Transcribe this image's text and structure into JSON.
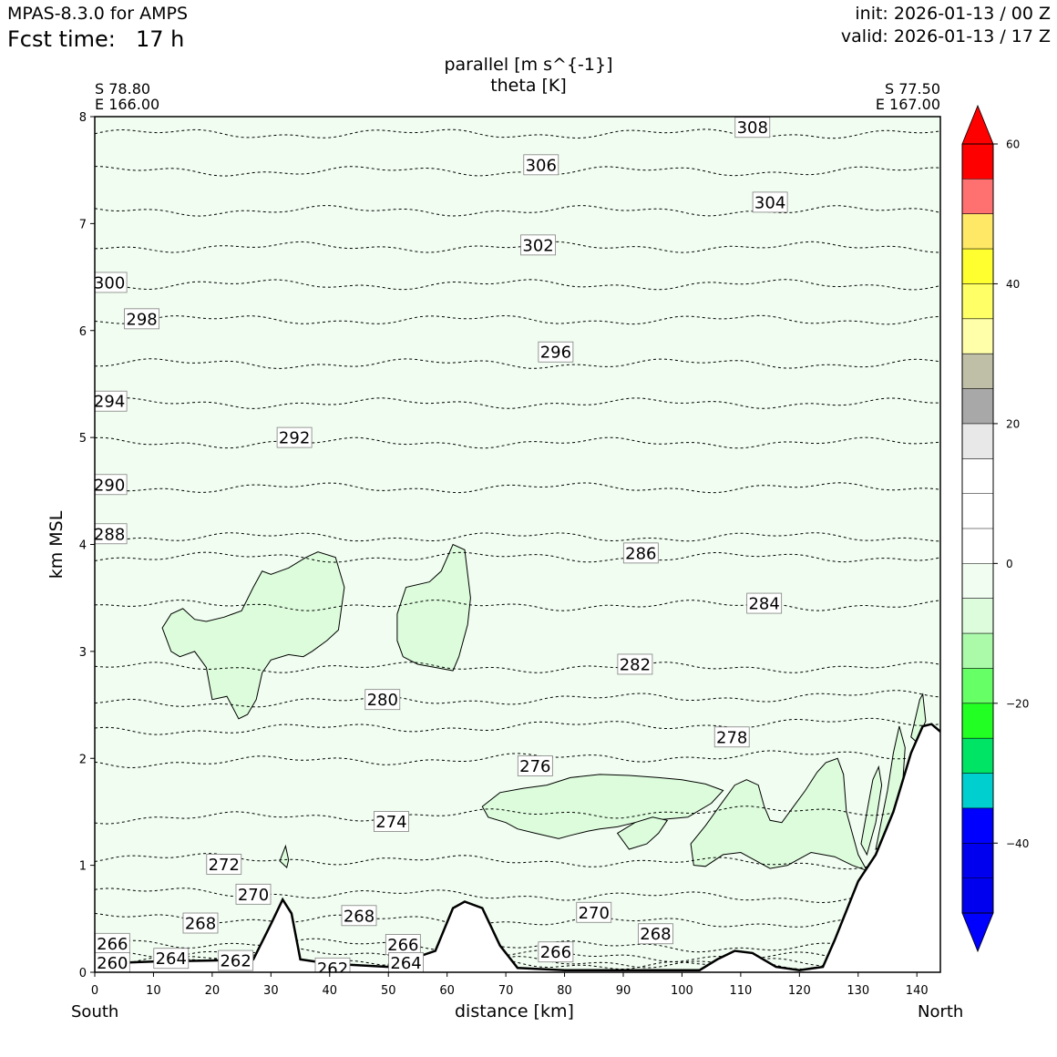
{
  "header": {
    "model": "MPAS-8.3.0 for AMPS",
    "fcst_label": "Fcst time:",
    "fcst_value": "17 h",
    "init": "init: 2026-01-13 / 00 Z",
    "valid": "valid: 2026-01-13 / 17 Z"
  },
  "titles": {
    "line1": "parallel [m s^{-1}]",
    "line2": "theta [K]"
  },
  "endpoints": {
    "left_lat": "S 78.80",
    "left_lon": "E 166.00",
    "right_lat": "S 77.50",
    "right_lon": "E 167.00",
    "left_dir": "South",
    "right_dir": "North"
  },
  "axes": {
    "xlabel": "distance [km]",
    "ylabel": "km MSL"
  },
  "colors": {
    "background_field": "#f0fdf0",
    "negative_contour_fill": "#dcfcdc",
    "terrain": "#ffffff"
  },
  "chart_data": {
    "type": "contour",
    "xlim": [
      0,
      144
    ],
    "ylim": [
      0,
      8
    ],
    "xticks": [
      0,
      10,
      20,
      30,
      40,
      50,
      60,
      70,
      80,
      90,
      100,
      110,
      120,
      130,
      140
    ],
    "yticks": [
      0,
      1,
      2,
      3,
      4,
      5,
      6,
      7,
      8
    ],
    "colorbar": {
      "ticks": [
        60,
        40,
        20,
        0,
        -20,
        -40
      ],
      "tick_labels": [
        "60",
        "40",
        "20",
        "0",
        "−20",
        "−40"
      ],
      "extend": "both",
      "bins": [
        {
          "from": 55,
          "to": 60,
          "color": "#ff0000"
        },
        {
          "from": 50,
          "to": 55,
          "color": "#ff7070"
        },
        {
          "from": 45,
          "to": 50,
          "color": "#ffe866"
        },
        {
          "from": 40,
          "to": 45,
          "color": "#ffff30"
        },
        {
          "from": 35,
          "to": 40,
          "color": "#ffff66"
        },
        {
          "from": 30,
          "to": 35,
          "color": "#ffffaa"
        },
        {
          "from": 25,
          "to": 30,
          "color": "#bfbfa8"
        },
        {
          "from": 20,
          "to": 25,
          "color": "#a8a8a8"
        },
        {
          "from": 15,
          "to": 20,
          "color": "#e8e8e8"
        },
        {
          "from": 10,
          "to": 15,
          "color": "#ffffff"
        },
        {
          "from": 5,
          "to": 10,
          "color": "#ffffff"
        },
        {
          "from": 0,
          "to": 5,
          "color": "#ffffff"
        },
        {
          "from": -5,
          "to": 0,
          "color": "#f0fdf0"
        },
        {
          "from": -10,
          "to": -5,
          "color": "#dcfcdc"
        },
        {
          "from": -15,
          "to": -10,
          "color": "#aafaaa"
        },
        {
          "from": -20,
          "to": -15,
          "color": "#66ff66"
        },
        {
          "from": -25,
          "to": -20,
          "color": "#22ff22"
        },
        {
          "from": -30,
          "to": -25,
          "color": "#00e466"
        },
        {
          "from": -35,
          "to": -30,
          "color": "#00cfcf"
        },
        {
          "from": -40,
          "to": -35,
          "color": "#0000ff"
        },
        {
          "from": -45,
          "to": -40,
          "color": "#0000ee"
        },
        {
          "from": -50,
          "to": -45,
          "color": "#0000ee"
        }
      ],
      "extend_low_color": "#0000ff",
      "extend_high_color": "#ff0000"
    },
    "theta_levels": [
      {
        "value": 308,
        "height": 7.84
      },
      {
        "value": 306,
        "height": 7.49
      },
      {
        "value": 304,
        "height": 7.12
      },
      {
        "value": 302,
        "height": 6.78
      },
      {
        "value": 300,
        "height": 6.43
      },
      {
        "value": 298,
        "height": 6.1
      },
      {
        "value": 296,
        "height": 5.69
      },
      {
        "value": 294,
        "height": 5.32
      },
      {
        "value": 292,
        "height": 4.95
      },
      {
        "value": 290,
        "height": 4.53
      },
      {
        "value": 288,
        "height": 4.07
      },
      {
        "value": 286,
        "height": 3.88
      },
      {
        "value": 284,
        "height": 3.43
      },
      {
        "value": 282,
        "height": 2.85
      },
      {
        "value": 280,
        "height": 2.55
      },
      {
        "value": 278,
        "height": 2.3
      },
      {
        "value": 276,
        "height": 2.0
      },
      {
        "value": 274,
        "height": 1.48
      },
      {
        "value": 272,
        "height": 1.04
      },
      {
        "value": 270,
        "height": 0.72
      },
      {
        "value": 268,
        "height": 0.48
      },
      {
        "value": 266,
        "height": 0.25
      },
      {
        "value": 264,
        "height": 0.16
      },
      {
        "value": 262,
        "height": 0.1
      },
      {
        "value": 260,
        "height": 0.08
      }
    ],
    "contour_labels": [
      {
        "text": "308",
        "x": 112,
        "y": 7.9
      },
      {
        "text": "306",
        "x": 76,
        "y": 7.55
      },
      {
        "text": "304",
        "x": 115,
        "y": 7.2
      },
      {
        "text": "302",
        "x": 75.5,
        "y": 6.8
      },
      {
        "text": "300",
        "x": 2.5,
        "y": 6.45
      },
      {
        "text": "298",
        "x": 8,
        "y": 6.11
      },
      {
        "text": "296",
        "x": 78.5,
        "y": 5.8
      },
      {
        "text": "294",
        "x": 2.5,
        "y": 5.34
      },
      {
        "text": "292",
        "x": 34,
        "y": 5.0
      },
      {
        "text": "290",
        "x": 2.5,
        "y": 4.56
      },
      {
        "text": "288",
        "x": 2.5,
        "y": 4.1
      },
      {
        "text": "286",
        "x": 93,
        "y": 3.92
      },
      {
        "text": "284",
        "x": 114,
        "y": 3.45
      },
      {
        "text": "282",
        "x": 92,
        "y": 2.88
      },
      {
        "text": "280",
        "x": 49,
        "y": 2.55
      },
      {
        "text": "278",
        "x": 108.5,
        "y": 2.2
      },
      {
        "text": "276",
        "x": 75,
        "y": 1.93
      },
      {
        "text": "274",
        "x": 50.5,
        "y": 1.41
      },
      {
        "text": "272",
        "x": 22,
        "y": 1.01
      },
      {
        "text": "270",
        "x": 27,
        "y": 0.73
      },
      {
        "text": "270",
        "x": 85,
        "y": 0.56
      },
      {
        "text": "268",
        "x": 18,
        "y": 0.46
      },
      {
        "text": "268",
        "x": 45,
        "y": 0.53
      },
      {
        "text": "268",
        "x": 95.5,
        "y": 0.36
      },
      {
        "text": "266",
        "x": 3,
        "y": 0.27
      },
      {
        "text": "266",
        "x": 52.5,
        "y": 0.26
      },
      {
        "text": "266",
        "x": 78.5,
        "y": 0.19
      },
      {
        "text": "264",
        "x": 13,
        "y": 0.13
      },
      {
        "text": "264",
        "x": 53,
        "y": 0.09
      },
      {
        "text": "262",
        "x": 24,
        "y": 0.11
      },
      {
        "text": "262",
        "x": 40.5,
        "y": 0.04
      },
      {
        "text": "260",
        "x": 3,
        "y": 0.09
      }
    ],
    "terrain": [
      [
        0,
        0.08
      ],
      [
        10,
        0.1
      ],
      [
        20,
        0.11
      ],
      [
        27,
        0.12
      ],
      [
        30,
        0.45
      ],
      [
        32,
        0.68
      ],
      [
        33.5,
        0.55
      ],
      [
        35,
        0.12
      ],
      [
        40,
        0.08
      ],
      [
        50,
        0.05
      ],
      [
        58,
        0.2
      ],
      [
        61,
        0.6
      ],
      [
        63,
        0.66
      ],
      [
        66,
        0.6
      ],
      [
        69,
        0.25
      ],
      [
        72,
        0.04
      ],
      [
        80,
        0.02
      ],
      [
        90,
        0.02
      ],
      [
        103,
        0.02
      ],
      [
        106,
        0.12
      ],
      [
        109,
        0.2
      ],
      [
        112,
        0.18
      ],
      [
        116,
        0.05
      ],
      [
        120,
        0.02
      ],
      [
        124,
        0.05
      ],
      [
        126,
        0.3
      ],
      [
        130,
        0.85
      ],
      [
        133,
        1.1
      ],
      [
        136,
        1.5
      ],
      [
        139,
        2.05
      ],
      [
        141,
        2.3
      ],
      [
        142.5,
        2.32
      ],
      [
        144,
        2.25
      ]
    ],
    "negative_regions": [
      [
        [
          11.5,
          3.22
        ],
        [
          13,
          3.35
        ],
        [
          15,
          3.4
        ],
        [
          17,
          3.3
        ],
        [
          19,
          3.28
        ],
        [
          22,
          3.32
        ],
        [
          25,
          3.38
        ],
        [
          27,
          3.6
        ],
        [
          28.5,
          3.75
        ],
        [
          30,
          3.72
        ],
        [
          33,
          3.78
        ],
        [
          36,
          3.88
        ],
        [
          38,
          3.93
        ],
        [
          41,
          3.88
        ],
        [
          42.5,
          3.6
        ],
        [
          41.5,
          3.2
        ],
        [
          39.5,
          3.1
        ],
        [
          37,
          3.0
        ],
        [
          35.5,
          2.95
        ],
        [
          33,
          2.97
        ],
        [
          30,
          2.92
        ],
        [
          28.5,
          2.8
        ],
        [
          27.5,
          2.55
        ],
        [
          26,
          2.41
        ],
        [
          24.5,
          2.37
        ],
        [
          22.5,
          2.58
        ],
        [
          20,
          2.55
        ],
        [
          19,
          2.85
        ],
        [
          17,
          3.0
        ],
        [
          14.5,
          2.95
        ],
        [
          13,
          3.0
        ],
        [
          11.5,
          3.22
        ]
      ],
      [
        [
          51.5,
          3.35
        ],
        [
          53,
          3.6
        ],
        [
          57,
          3.65
        ],
        [
          59,
          3.75
        ],
        [
          61,
          4.0
        ],
        [
          63,
          3.95
        ],
        [
          64,
          3.5
        ],
        [
          63.5,
          3.25
        ],
        [
          62,
          2.95
        ],
        [
          61,
          2.82
        ],
        [
          58,
          2.85
        ],
        [
          55,
          2.88
        ],
        [
          52.5,
          2.95
        ],
        [
          51.5,
          3.1
        ],
        [
          51.5,
          3.35
        ]
      ],
      [
        [
          66,
          1.55
        ],
        [
          69,
          1.68
        ],
        [
          73,
          1.72
        ],
        [
          77,
          1.75
        ],
        [
          81,
          1.82
        ],
        [
          86,
          1.85
        ],
        [
          91,
          1.84
        ],
        [
          96,
          1.82
        ],
        [
          100,
          1.8
        ],
        [
          104,
          1.76
        ],
        [
          107,
          1.7
        ],
        [
          105,
          1.58
        ],
        [
          101,
          1.45
        ],
        [
          95,
          1.42
        ],
        [
          92,
          1.4
        ],
        [
          89,
          1.36
        ],
        [
          86,
          1.34
        ],
        [
          84,
          1.32
        ],
        [
          81,
          1.28
        ],
        [
          79,
          1.25
        ],
        [
          75,
          1.3
        ],
        [
          72,
          1.34
        ],
        [
          70,
          1.4
        ],
        [
          67,
          1.45
        ],
        [
          66,
          1.55
        ]
      ],
      [
        [
          89,
          1.3
        ],
        [
          92,
          1.4
        ],
        [
          95,
          1.45
        ],
        [
          97.5,
          1.42
        ],
        [
          96,
          1.3
        ],
        [
          94,
          1.2
        ],
        [
          91,
          1.15
        ],
        [
          89,
          1.3
        ]
      ],
      [
        [
          101.5,
          1.2
        ],
        [
          104,
          1.37
        ],
        [
          107,
          1.6
        ],
        [
          109,
          1.75
        ],
        [
          111,
          1.8
        ],
        [
          113,
          1.75
        ],
        [
          114,
          1.55
        ],
        [
          115,
          1.42
        ],
        [
          117,
          1.4
        ],
        [
          119,
          1.55
        ],
        [
          121,
          1.7
        ],
        [
          123,
          1.87
        ],
        [
          124.5,
          1.96
        ],
        [
          126.5,
          2.0
        ],
        [
          127.5,
          1.85
        ],
        [
          128,
          1.5
        ],
        [
          129,
          1.3
        ],
        [
          130,
          1.1
        ],
        [
          131.5,
          0.95
        ],
        [
          129,
          1.0
        ],
        [
          126,
          1.08
        ],
        [
          122,
          1.12
        ],
        [
          118,
          1.0
        ],
        [
          115,
          0.97
        ],
        [
          112,
          1.06
        ],
        [
          110,
          1.12
        ],
        [
          107,
          1.1
        ],
        [
          104,
          0.99
        ],
        [
          102,
          1.0
        ],
        [
          101.5,
          1.2
        ]
      ],
      [
        [
          130.5,
          1.2
        ],
        [
          131.5,
          1.5
        ],
        [
          132.5,
          1.8
        ],
        [
          133.5,
          1.92
        ],
        [
          134,
          1.75
        ],
        [
          133,
          1.4
        ],
        [
          131.5,
          1.1
        ],
        [
          130.5,
          1.2
        ]
      ],
      [
        [
          133,
          1.15
        ],
        [
          135,
          1.7
        ],
        [
          136,
          2.05
        ],
        [
          137,
          2.3
        ],
        [
          138,
          2.1
        ],
        [
          137.5,
          1.7
        ],
        [
          135,
          1.2
        ],
        [
          133,
          1.15
        ]
      ],
      [
        [
          139,
          2.2
        ],
        [
          140.5,
          2.55
        ],
        [
          141,
          2.6
        ],
        [
          141.5,
          2.35
        ],
        [
          140,
          2.15
        ],
        [
          139,
          2.2
        ]
      ],
      [
        [
          31.5,
          1.04
        ],
        [
          32.5,
          1.18
        ],
        [
          33,
          1.05
        ],
        [
          32.7,
          0.98
        ],
        [
          31.5,
          1.04
        ]
      ]
    ]
  }
}
